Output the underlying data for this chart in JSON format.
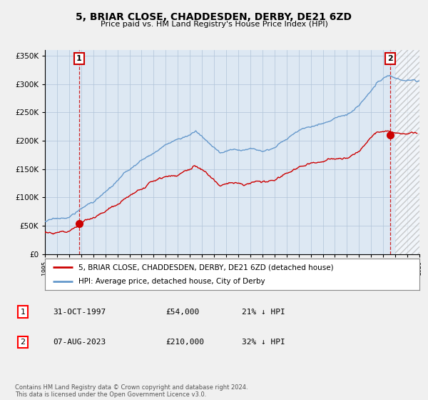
{
  "title": "5, BRIAR CLOSE, CHADDESDEN, DERBY, DE21 6ZD",
  "subtitle": "Price paid vs. HM Land Registry's House Price Index (HPI)",
  "sale1_date": "31-OCT-1997",
  "sale1_price": 54000,
  "sale1_label": "21% ↓ HPI",
  "sale2_date": "07-AUG-2023",
  "sale2_price": 210000,
  "sale2_label": "32% ↓ HPI",
  "legend_house": "5, BRIAR CLOSE, CHADDESDEN, DERBY, DE21 6ZD (detached house)",
  "legend_hpi": "HPI: Average price, detached house, City of Derby",
  "footer": "Contains HM Land Registry data © Crown copyright and database right 2024.\nThis data is licensed under the Open Government Licence v3.0.",
  "ylim": [
    0,
    360000
  ],
  "xlim_left": 1995,
  "xlim_right": 2026,
  "house_color": "#cc0000",
  "hpi_color": "#6699cc",
  "background_color": "#f0f0f0",
  "plot_bg_color": "#dde8f3",
  "hatch_start": 2024.0,
  "sale1_year": 1997.833,
  "sale2_year": 2023.583
}
